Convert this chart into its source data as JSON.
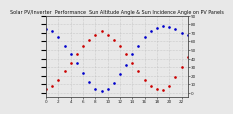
{
  "title": "Solar PV/Inverter  Performance  Sun Altitude Angle & Sun Incidence Angle on PV Panels",
  "bg_color": "#e8e8e8",
  "plot_bg_color": "#e8e8e8",
  "grid_color": "#aaaaaa",
  "x_values": [
    0,
    1,
    2,
    3,
    4,
    5,
    6,
    7,
    8,
    9,
    10,
    11,
    12,
    13,
    14,
    15,
    16,
    17,
    18,
    19,
    20,
    21,
    22,
    23
  ],
  "blue_y": [
    75,
    72,
    65,
    55,
    45,
    35,
    23,
    13,
    5,
    2,
    4,
    12,
    22,
    33,
    45,
    55,
    65,
    72,
    76,
    78,
    77,
    74,
    70,
    67
  ],
  "red_y": [
    5,
    8,
    15,
    25,
    35,
    45,
    55,
    62,
    68,
    72,
    68,
    62,
    55,
    45,
    35,
    25,
    15,
    8,
    5,
    3,
    8,
    18,
    30,
    42
  ],
  "blue_color": "#0000cc",
  "red_color": "#cc0000",
  "ylim": [
    -5,
    90
  ],
  "xlim": [
    0,
    23
  ],
  "yticks": [
    0,
    10,
    20,
    30,
    40,
    50,
    60,
    70,
    80,
    90
  ],
  "xticks": [
    0,
    2,
    4,
    6,
    8,
    10,
    12,
    14,
    16,
    18,
    20,
    22
  ],
  "title_fontsize": 3.5,
  "tick_fontsize": 3,
  "spine_color": "#444444"
}
